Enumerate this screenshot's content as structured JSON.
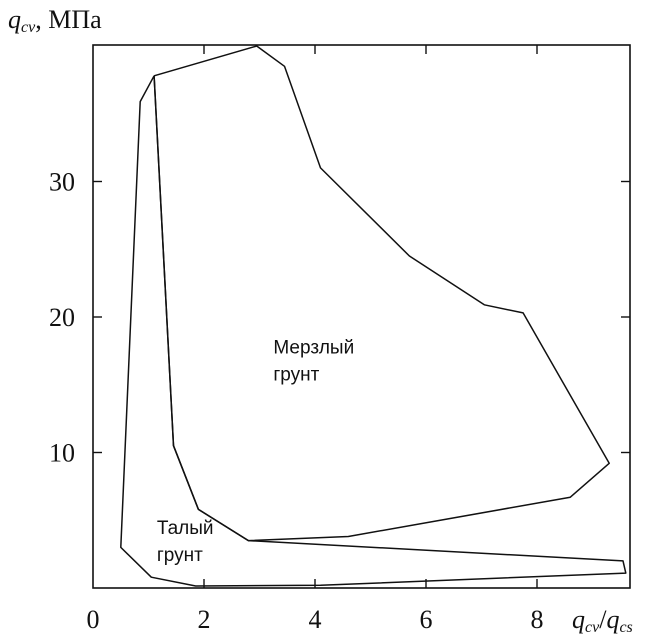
{
  "chart_data": {
    "type": "area",
    "title": "",
    "ylabel": {
      "symbol": "q",
      "subscript": "cv",
      "unit": ", МПа"
    },
    "xlabel": {
      "num_symbol": "q",
      "num_subscript": "cv",
      "slash": "/",
      "den_symbol": "q",
      "den_subscript": "cs"
    },
    "xlim": [
      0,
      10
    ],
    "ylim": [
      0,
      40
    ],
    "xticks": [
      0,
      2,
      4,
      6,
      8
    ],
    "yticks": [
      10,
      20,
      30
    ],
    "grid": false,
    "regions": [
      {
        "label_lines": [
          "Мерзлый",
          "грунт"
        ],
        "label_at": [
          3.25,
          17.3
        ],
        "points": [
          [
            1.1,
            37.8
          ],
          [
            2.95,
            40.0
          ],
          [
            3.45,
            38.5
          ],
          [
            4.1,
            31.0
          ],
          [
            5.7,
            24.5
          ],
          [
            7.05,
            20.9
          ],
          [
            7.75,
            20.3
          ],
          [
            9.3,
            9.2
          ],
          [
            8.6,
            6.7
          ],
          [
            4.6,
            3.8
          ],
          [
            2.8,
            3.5
          ],
          [
            1.9,
            5.8
          ],
          [
            1.45,
            10.5
          ],
          [
            1.1,
            37.8
          ]
        ]
      },
      {
        "label_lines": [
          "Талый",
          "грунт"
        ],
        "label_at": [
          1.15,
          4.0
        ],
        "points": [
          [
            1.1,
            37.8
          ],
          [
            0.85,
            35.9
          ],
          [
            0.5,
            3.0
          ],
          [
            1.05,
            0.8
          ],
          [
            1.85,
            0.15
          ],
          [
            4.1,
            0.2
          ],
          [
            9.6,
            1.1
          ],
          [
            9.55,
            2.0
          ],
          [
            2.8,
            3.5
          ],
          [
            1.9,
            5.8
          ],
          [
            1.45,
            10.5
          ],
          [
            1.1,
            37.8
          ]
        ]
      }
    ]
  }
}
